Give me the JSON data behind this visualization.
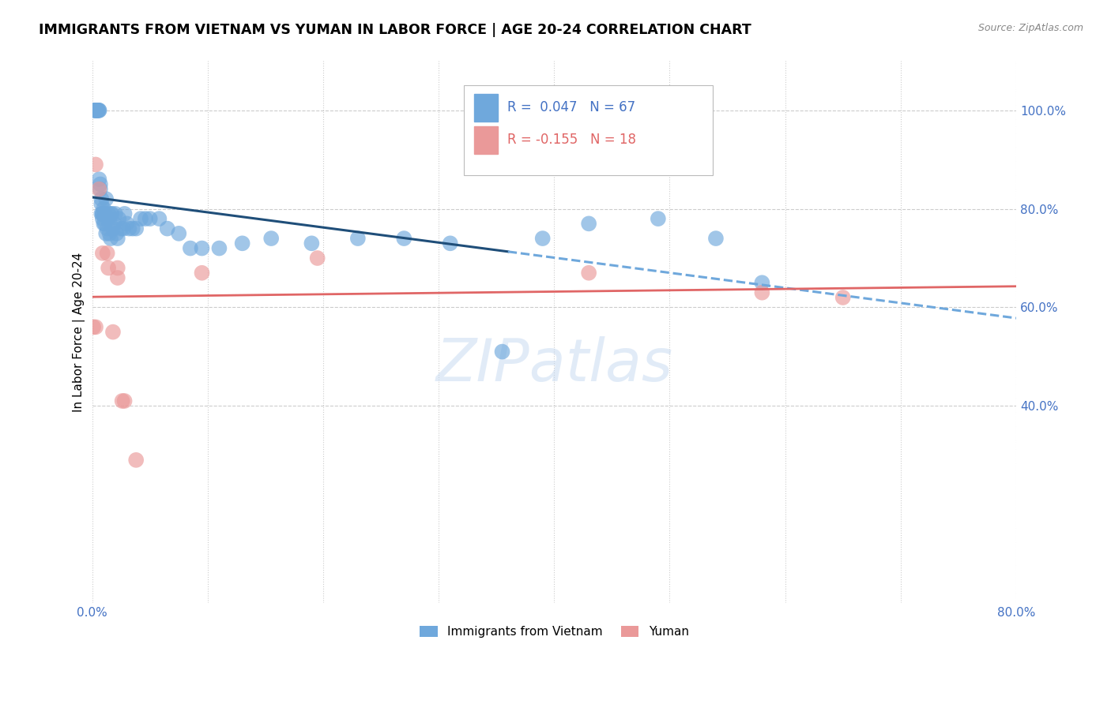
{
  "title": "IMMIGRANTS FROM VIETNAM VS YUMAN IN LABOR FORCE | AGE 20-24 CORRELATION CHART",
  "source": "Source: ZipAtlas.com",
  "ylabel": "In Labor Force | Age 20-24",
  "xlim": [
    0.0,
    0.8
  ],
  "ylim": [
    0.0,
    1.1
  ],
  "ytick_vals": [
    0.4,
    0.6,
    0.8,
    1.0
  ],
  "ytick_labels": [
    "40.0%",
    "60.0%",
    "80.0%",
    "100.0%"
  ],
  "xtick_vals": [
    0.0,
    0.8
  ],
  "xtick_labels": [
    "0.0%",
    "80.0%"
  ],
  "grid_yticks": [
    0.4,
    0.6,
    0.8,
    1.0
  ],
  "grid_xticks": [
    0.0,
    0.1,
    0.2,
    0.3,
    0.4,
    0.5,
    0.6,
    0.7,
    0.8
  ],
  "legend_label_blue": "Immigrants from Vietnam",
  "legend_label_pink": "Yuman",
  "blue_color": "#6fa8dc",
  "pink_color": "#ea9999",
  "trendline_blue_solid_color": "#1f4e79",
  "trendline_blue_dashed_color": "#6fa8dc",
  "trendline_pink_color": "#e06666",
  "trendline_split_x": 0.36,
  "watermark": "ZIPatlas",
  "watermark_color": "#c5d9f1",
  "background_color": "#ffffff",
  "tick_color": "#4472c4",
  "blue_r_text": "R =  0.047",
  "blue_n_text": "N = 67",
  "pink_r_text": "R = -0.155",
  "pink_n_text": "N = 18",
  "blue_scatter_x": [
    0.002,
    0.002,
    0.003,
    0.003,
    0.004,
    0.004,
    0.005,
    0.005,
    0.006,
    0.006,
    0.006,
    0.007,
    0.007,
    0.008,
    0.008,
    0.008,
    0.009,
    0.009,
    0.009,
    0.01,
    0.01,
    0.011,
    0.011,
    0.012,
    0.012,
    0.013,
    0.013,
    0.014,
    0.015,
    0.015,
    0.016,
    0.016,
    0.017,
    0.018,
    0.019,
    0.02,
    0.021,
    0.022,
    0.023,
    0.025,
    0.027,
    0.028,
    0.03,
    0.032,
    0.035,
    0.038,
    0.042,
    0.046,
    0.05,
    0.058,
    0.065,
    0.075,
    0.085,
    0.095,
    0.11,
    0.13,
    0.155,
    0.19,
    0.23,
    0.27,
    0.31,
    0.355,
    0.39,
    0.43,
    0.49,
    0.54,
    0.58
  ],
  "blue_scatter_y": [
    1.0,
    1.0,
    1.0,
    1.0,
    1.0,
    1.0,
    1.0,
    1.0,
    1.0,
    1.0,
    0.86,
    0.84,
    0.85,
    0.82,
    0.81,
    0.79,
    0.79,
    0.78,
    0.79,
    0.8,
    0.77,
    0.79,
    0.77,
    0.82,
    0.75,
    0.78,
    0.76,
    0.79,
    0.75,
    0.78,
    0.79,
    0.74,
    0.79,
    0.76,
    0.77,
    0.79,
    0.75,
    0.74,
    0.78,
    0.76,
    0.76,
    0.79,
    0.77,
    0.76,
    0.76,
    0.76,
    0.78,
    0.78,
    0.78,
    0.78,
    0.76,
    0.75,
    0.72,
    0.72,
    0.72,
    0.73,
    0.74,
    0.73,
    0.74,
    0.74,
    0.73,
    0.51,
    0.74,
    0.77,
    0.78,
    0.74,
    0.65
  ],
  "pink_scatter_x": [
    0.003,
    0.006,
    0.009,
    0.014,
    0.018,
    0.022,
    0.026,
    0.028,
    0.095,
    0.195,
    0.43,
    0.58,
    0.65,
    0.001,
    0.003,
    0.013,
    0.022,
    0.038
  ],
  "pink_scatter_y": [
    0.89,
    0.84,
    0.71,
    0.68,
    0.55,
    0.66,
    0.41,
    0.41,
    0.67,
    0.7,
    0.67,
    0.63,
    0.62,
    0.56,
    0.56,
    0.71,
    0.68,
    0.29
  ]
}
